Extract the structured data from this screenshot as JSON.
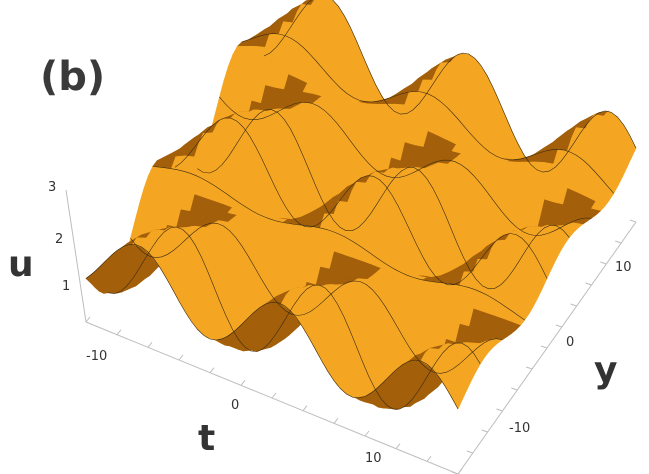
{
  "figure": {
    "panel_label": "(b)"
  },
  "chart_data": {
    "type": "surface",
    "title": "",
    "axes": {
      "u": {
        "label": "u",
        "range": [
          0.5,
          3
        ],
        "ticks": [
          "1",
          "2",
          "3"
        ]
      },
      "t": {
        "label": "t",
        "range": [
          -15,
          15
        ],
        "ticks": [
          "-10",
          "0",
          "10"
        ]
      },
      "y": {
        "label": "y",
        "range": [
          -15,
          15
        ],
        "ticks": [
          "-10",
          "0",
          "10"
        ]
      }
    },
    "surface": {
      "description_of_shape": "periodic doubly-oscillating wave lattice",
      "color": "#f4a623",
      "shadow_color": "#a35f0a",
      "mesh_color": "#3a2a10"
    }
  }
}
